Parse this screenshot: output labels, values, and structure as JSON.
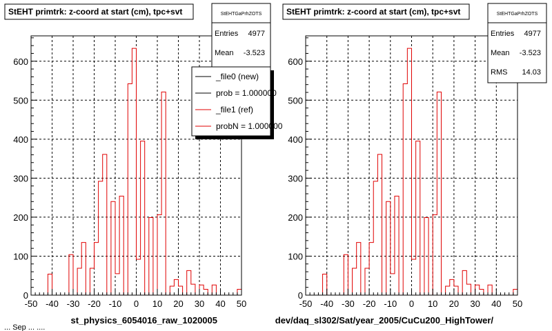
{
  "bottom_text": "... Sep ... ....",
  "chart_data": [
    {
      "type": "bar",
      "title": "StEHT primtrk: z-coord at start (cm), tpc+svt",
      "xlabel": "st_physics_6054016_raw_1020005",
      "xlim": [
        -50,
        50
      ],
      "ylim": [
        0,
        665
      ],
      "x_ticks": [
        -50,
        -40,
        -30,
        -20,
        -10,
        0,
        10,
        20,
        30,
        40,
        50
      ],
      "y_ticks": [
        0,
        100,
        200,
        300,
        400,
        500,
        600
      ],
      "grid": true,
      "bin_edges": [
        -50,
        -48,
        -46,
        -44,
        -42,
        -40,
        -38,
        -36,
        -34,
        -32,
        -30,
        -28,
        -26,
        -24,
        -22,
        -20,
        -18,
        -16,
        -14,
        -12,
        -10,
        -8,
        -6,
        -4,
        -2,
        0,
        2,
        4,
        6,
        8,
        10,
        12,
        14,
        16,
        18,
        20,
        22,
        24,
        26,
        28,
        30,
        32,
        34,
        36,
        38,
        40,
        42,
        44,
        46,
        48,
        50
      ],
      "series": [
        {
          "color": "#e00000",
          "values": [
            0,
            0,
            0,
            0,
            54,
            0,
            0,
            0,
            0,
            104,
            0,
            69,
            135,
            0,
            69,
            135,
            292,
            361,
            0,
            240,
            55,
            254,
            0,
            542,
            633,
            92,
            395,
            0,
            199,
            0,
            206,
            521,
            0,
            23,
            40,
            23,
            0,
            63,
            28,
            0,
            26,
            15,
            0,
            26,
            0,
            0,
            0,
            0,
            0,
            15
          ]
        }
      ],
      "stats": {
        "name": "StEHTGaPrhZOTS",
        "entries_label": "Entries",
        "entries": "4977",
        "mean_label": "Mean",
        "mean": "-3.523"
      },
      "legend": {
        "position": "top-right",
        "items": [
          {
            "label": "_file0 (new)",
            "color": "#000000"
          },
          {
            "label": "prob = 1.000000",
            "color": "#000000"
          },
          {
            "label": "_file1 (ref)",
            "color": "#e00000"
          },
          {
            "label": "probN = 1.000000",
            "color": "#e00000"
          }
        ]
      }
    },
    {
      "type": "bar",
      "title": "StEHT primtrk: z-coord at start (cm), tpc+svt",
      "xlabel": "dev/daq_sl302/Sat/year_2005/CuCu200_HighTower/",
      "xlim": [
        -50,
        50
      ],
      "ylim": [
        0,
        665
      ],
      "x_ticks": [
        -50,
        -40,
        -30,
        -20,
        -10,
        0,
        10,
        20,
        30,
        40,
        50
      ],
      "y_ticks": [
        0,
        100,
        200,
        300,
        400,
        500,
        600
      ],
      "grid": true,
      "bin_edges": [
        -50,
        -48,
        -46,
        -44,
        -42,
        -40,
        -38,
        -36,
        -34,
        -32,
        -30,
        -28,
        -26,
        -24,
        -22,
        -20,
        -18,
        -16,
        -14,
        -12,
        -10,
        -8,
        -6,
        -4,
        -2,
        0,
        2,
        4,
        6,
        8,
        10,
        12,
        14,
        16,
        18,
        20,
        22,
        24,
        26,
        28,
        30,
        32,
        34,
        36,
        38,
        40,
        42,
        44,
        46,
        48,
        50
      ],
      "series": [
        {
          "color": "#e00000",
          "values": [
            0,
            0,
            0,
            0,
            54,
            0,
            0,
            0,
            0,
            104,
            0,
            69,
            135,
            0,
            69,
            135,
            292,
            361,
            0,
            240,
            55,
            254,
            0,
            542,
            633,
            92,
            395,
            0,
            199,
            0,
            206,
            521,
            0,
            23,
            40,
            23,
            0,
            63,
            28,
            0,
            26,
            15,
            0,
            26,
            0,
            0,
            0,
            0,
            0,
            15
          ]
        }
      ],
      "stats": {
        "name": "StEHTGaPrhZOTS",
        "entries_label": "Entries",
        "entries": "4977",
        "mean_label": "Mean",
        "mean": "-3.523",
        "rms_label": "RMS",
        "rms": "14.03"
      }
    }
  ]
}
